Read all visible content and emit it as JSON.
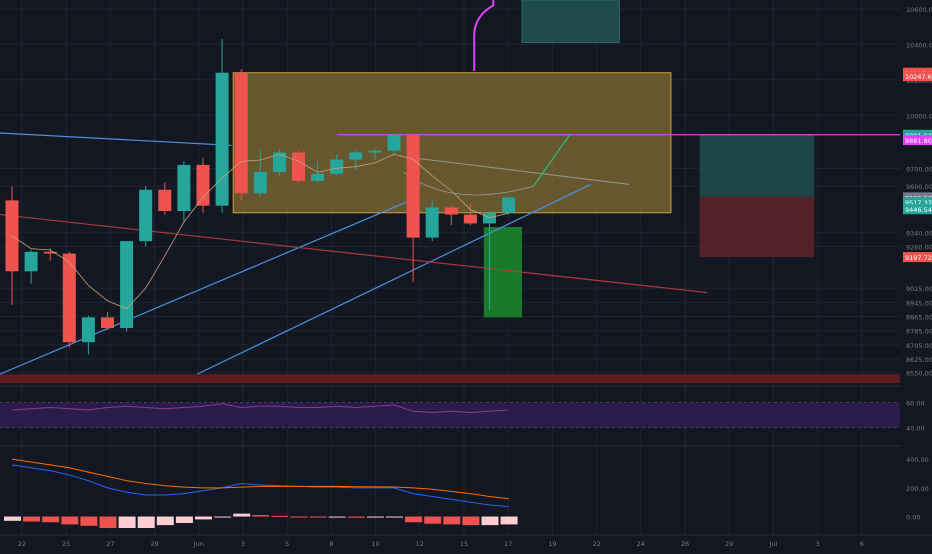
{
  "colors": {
    "background": "#131722",
    "grid": "#1f2433",
    "up": "#26a69a",
    "down": "#ef5350",
    "axis_text": "#787b86",
    "zone_fill": "#8a7434",
    "zone_border": "#c9a13e",
    "blue_line": "#4a90e2",
    "red_line": "#b03a3a",
    "magenta": "#e040fb",
    "rsi_fill": "#2a1c48",
    "rsi_line": "#8e3a8e",
    "macd_line": "#2962ff",
    "signal_line": "#ff6d00",
    "hist_up": "#ffcdd2",
    "hist_down": "#ef5350"
  },
  "chart_data": [
    {
      "type": "candlestick",
      "title": "",
      "x_ticks": [
        "22",
        "25",
        "27",
        "29",
        "Jun",
        "3",
        "5",
        "8",
        "10",
        "12",
        "15",
        "17",
        "19",
        "22",
        "24",
        "26",
        "29",
        "Jul",
        "3",
        "6"
      ],
      "y_ticks": [
        10600,
        10400,
        10200,
        10000,
        9700,
        9600,
        9340,
        9260,
        9025,
        8945,
        8865,
        8785,
        8705,
        8625,
        8550
      ],
      "ylim": [
        8490,
        10650
      ],
      "price_tags": [
        {
          "value": "10247.65",
          "color": "#ef5350"
        },
        {
          "value": "10247.65",
          "color": "#ef5350"
        },
        {
          "value": "9891.94",
          "color": "#26a69a"
        },
        {
          "value": "9881.80",
          "color": "#e040fb"
        },
        {
          "value": "9536.56",
          "color": "#787b86"
        },
        {
          "value": "9517.37",
          "color": "#26a69a"
        },
        {
          "value": "9446.54",
          "color": "#26a69a"
        },
        {
          "value": "9197.72",
          "color": "#ef5350"
        }
      ],
      "candles": [
        {
          "o": 9520,
          "h": 9600,
          "l": 8930,
          "c": 9120
        },
        {
          "o": 9120,
          "h": 9240,
          "l": 9050,
          "c": 9230
        },
        {
          "o": 9230,
          "h": 9250,
          "l": 9180,
          "c": 9220
        },
        {
          "o": 9220,
          "h": 9230,
          "l": 8690,
          "c": 8720
        },
        {
          "o": 8720,
          "h": 8870,
          "l": 8650,
          "c": 8860
        },
        {
          "o": 8860,
          "h": 8890,
          "l": 8790,
          "c": 8800
        },
        {
          "o": 8800,
          "h": 9290,
          "l": 8780,
          "c": 9290
        },
        {
          "o": 9290,
          "h": 9600,
          "l": 9260,
          "c": 9580
        },
        {
          "o": 9580,
          "h": 9620,
          "l": 9440,
          "c": 9460
        },
        {
          "o": 9460,
          "h": 9740,
          "l": 9400,
          "c": 9720
        },
        {
          "o": 9720,
          "h": 9760,
          "l": 9450,
          "c": 9490
        },
        {
          "o": 9490,
          "h": 10430,
          "l": 9450,
          "c": 10240
        },
        {
          "o": 10240,
          "h": 10260,
          "l": 9520,
          "c": 9560
        },
        {
          "o": 9560,
          "h": 9800,
          "l": 9540,
          "c": 9680
        },
        {
          "o": 9680,
          "h": 9810,
          "l": 9660,
          "c": 9790
        },
        {
          "o": 9790,
          "h": 9800,
          "l": 9620,
          "c": 9630
        },
        {
          "o": 9630,
          "h": 9740,
          "l": 9620,
          "c": 9670
        },
        {
          "o": 9670,
          "h": 9780,
          "l": 9660,
          "c": 9750
        },
        {
          "o": 9750,
          "h": 9800,
          "l": 9690,
          "c": 9790
        },
        {
          "o": 9790,
          "h": 9810,
          "l": 9750,
          "c": 9800
        },
        {
          "o": 9800,
          "h": 9900,
          "l": 9780,
          "c": 9890
        },
        {
          "o": 9890,
          "h": 9895,
          "l": 9060,
          "c": 9310
        },
        {
          "o": 9310,
          "h": 9520,
          "l": 9290,
          "c": 9480
        },
        {
          "o": 9480,
          "h": 9490,
          "l": 9380,
          "c": 9440
        },
        {
          "o": 9440,
          "h": 9500,
          "l": 9380,
          "c": 9390
        },
        {
          "o": 9390,
          "h": 9460,
          "l": 8900,
          "c": 9450
        },
        {
          "o": 9450,
          "h": 9540,
          "l": 9440,
          "c": 9537
        }
      ]
    },
    {
      "type": "line",
      "title": "",
      "y_ticks": [
        60.0,
        40.0
      ],
      "ylim": [
        30,
        70
      ],
      "values": [
        54,
        55,
        56,
        55,
        54,
        56,
        57,
        56,
        55,
        56,
        57,
        59,
        56,
        57,
        57,
        56,
        56,
        57,
        56,
        57,
        58,
        53,
        52,
        53,
        52,
        53,
        54
      ]
    },
    {
      "type": "histogram",
      "title": "",
      "y_ticks": [
        400.0,
        200.0,
        0.0
      ],
      "ylim": [
        -80,
        450
      ],
      "macd": [
        360,
        340,
        320,
        290,
        250,
        200,
        170,
        150,
        150,
        160,
        180,
        200,
        230,
        220,
        215,
        210,
        205,
        205,
        200,
        200,
        200,
        160,
        140,
        120,
        100,
        80,
        70
      ],
      "signal": [
        400,
        380,
        360,
        340,
        310,
        280,
        250,
        230,
        215,
        205,
        200,
        200,
        205,
        210,
        210,
        210,
        210,
        210,
        208,
        207,
        206,
        200,
        190,
        175,
        160,
        140,
        125
      ],
      "histogram": [
        -30,
        -35,
        -40,
        -55,
        -65,
        -80,
        -80,
        -80,
        -60,
        -45,
        -20,
        -5,
        20,
        10,
        5,
        0,
        -5,
        -5,
        -8,
        -7,
        -6,
        -40,
        -50,
        -55,
        -60,
        -60,
        -55
      ]
    }
  ]
}
